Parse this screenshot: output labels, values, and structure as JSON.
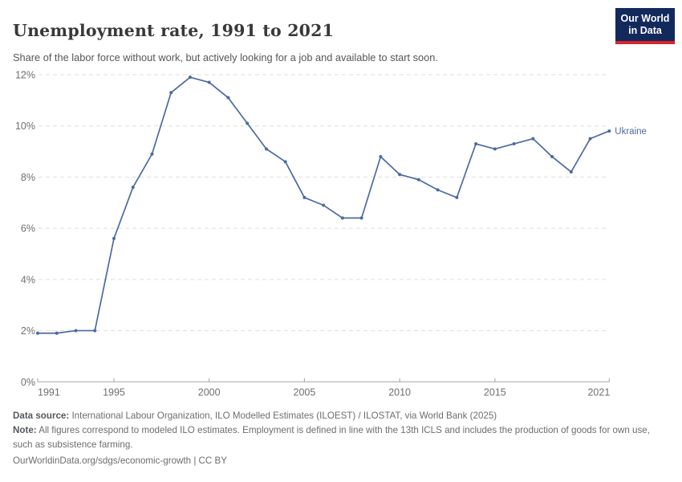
{
  "header": {
    "title": "Unemployment rate, 1991 to 2021",
    "subtitle": "Share of the labor force without work, but actively looking for a job and available to start soon.",
    "logo": {
      "line1": "Our World",
      "line2": "in Data"
    }
  },
  "chart_data": {
    "type": "line",
    "title": "Unemployment rate, 1991 to 2021",
    "x": [
      1991,
      1992,
      1993,
      1994,
      1995,
      1996,
      1997,
      1998,
      1999,
      2000,
      2001,
      2002,
      2003,
      2004,
      2005,
      2006,
      2007,
      2008,
      2009,
      2010,
      2011,
      2012,
      2013,
      2014,
      2015,
      2016,
      2017,
      2018,
      2019,
      2020,
      2021
    ],
    "series": [
      {
        "name": "Ukraine",
        "values": [
          1.9,
          1.9,
          2.0,
          2.0,
          5.6,
          7.6,
          8.9,
          11.3,
          11.9,
          11.7,
          11.1,
          10.1,
          9.1,
          8.6,
          7.2,
          6.9,
          6.4,
          6.4,
          8.8,
          8.1,
          7.9,
          7.5,
          7.2,
          9.3,
          9.1,
          9.3,
          9.5,
          8.8,
          8.2,
          9.5,
          9.8
        ]
      }
    ],
    "xlabel": "",
    "ylabel": "",
    "ylim": [
      0,
      12
    ],
    "yticks": [
      0,
      2,
      4,
      6,
      8,
      10,
      12
    ],
    "ytick_suffix": "%",
    "xticks": [
      1991,
      1995,
      2000,
      2005,
      2010,
      2015,
      2021
    ],
    "grid": "horizontal-dashed",
    "legend": "end-of-line-label"
  },
  "footer": {
    "source_label": "Data source:",
    "source_text": " International Labour Organization, ILO Modelled Estimates (ILOEST) / ILOSTAT, via World Bank (2025)",
    "note_label": "Note:",
    "note_text": " All figures correspond to modeled ILO estimates. Employment is defined in line with the 13th ICLS and includes the production of goods for own use, such as subsistence farming.",
    "link": "OurWorldinData.org/sdgs/economic-growth | CC BY"
  },
  "colors": {
    "line": "#4c6b9f",
    "grid": "#dedede",
    "axis": "#a3a3a3",
    "tick_label": "#6f6f6f",
    "title": "#383838",
    "subtitle": "#565656",
    "footer": "#6d6d6d",
    "footer_label": "#55595d",
    "logo_bg": "#12295c",
    "logo_bar": "#d8252b"
  }
}
